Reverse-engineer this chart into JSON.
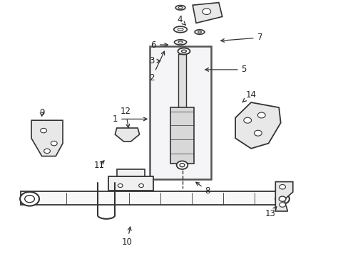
{
  "title": "",
  "bg_color": "#ffffff",
  "line_color": "#333333",
  "figsize": [
    4.89,
    3.6
  ],
  "dpi": 100,
  "labels_data": [
    [
      1,
      0.33,
      0.535,
      0.43,
      0.535
    ],
    [
      2,
      0.435,
      0.695,
      0.475,
      0.81
    ],
    [
      3,
      0.435,
      0.762,
      0.468,
      0.762
    ],
    [
      4,
      0.515,
      0.924,
      0.538,
      0.895
    ],
    [
      5,
      0.7,
      0.728,
      0.58,
      0.728
    ],
    [
      6,
      0.44,
      0.825,
      0.49,
      0.825
    ],
    [
      7,
      0.745,
      0.853,
      0.625,
      0.84
    ],
    [
      8,
      0.595,
      0.255,
      0.555,
      0.295
    ],
    [
      9,
      0.12,
      0.56,
      0.12,
      0.535
    ],
    [
      10,
      0.365,
      0.055,
      0.375,
      0.125
    ],
    [
      11,
      0.285,
      0.355,
      0.305,
      0.38
    ],
    [
      12,
      0.36,
      0.565,
      0.37,
      0.49
    ],
    [
      13,
      0.775,
      0.165,
      0.795,
      0.195
    ],
    [
      14,
      0.72,
      0.63,
      0.69,
      0.595
    ]
  ]
}
